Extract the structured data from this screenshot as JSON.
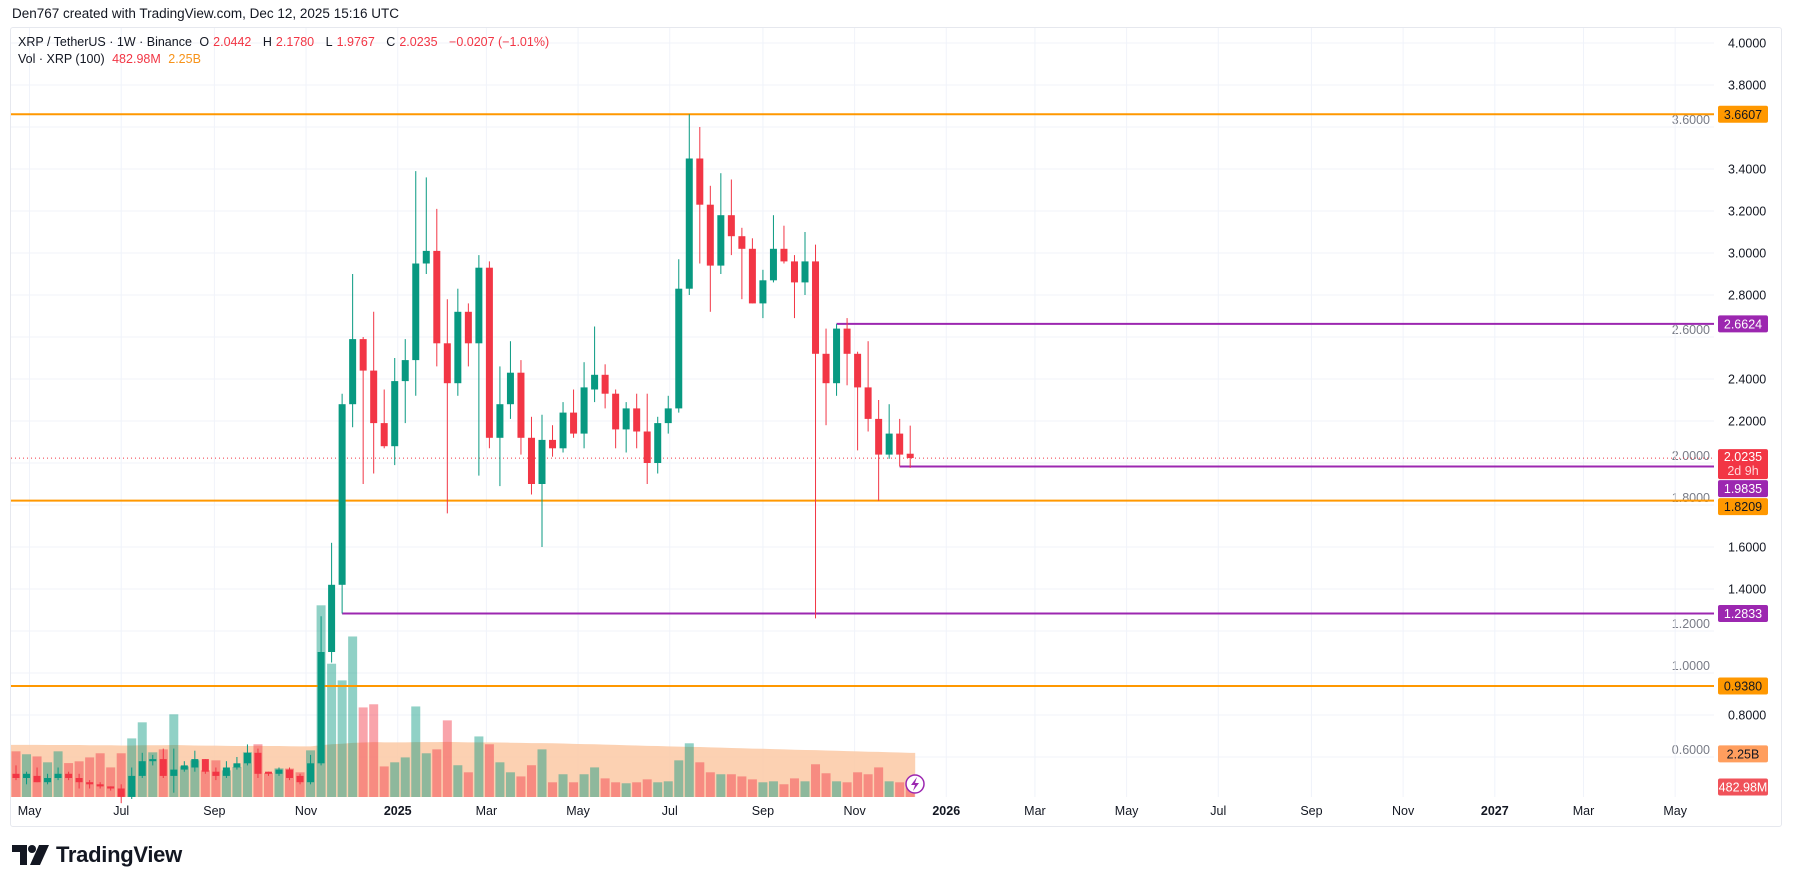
{
  "credit": "Den767 created with TradingView.com, Dec 12, 2025 15:16 UTC",
  "legend": {
    "symbol": "XRP / TetherUS · 1W · Binance",
    "o_label": "O",
    "o": "2.0442",
    "h_label": "H",
    "h": "2.1780",
    "l_label": "L",
    "l": "1.9767",
    "c_label": "C",
    "c": "2.0235",
    "change": "−0.0207 (−1.01%)",
    "vol_label": "Vol · XRP (100)",
    "vol": "482.98M",
    "vol_ma": "2.25B"
  },
  "logo": {
    "text": "TradingView"
  },
  "colors": {
    "up": "#089981",
    "down": "#f23645",
    "orange_level": "#ff9800",
    "purple_level": "#9c27b0",
    "vol_ma": "#ff9e5e",
    "grid": "#f0f3fa"
  },
  "chart_data": {
    "type": "candlestick",
    "interval": "1W",
    "yscale": "linear",
    "ylim": [
      0.5,
      4.0
    ],
    "grid": true,
    "y_ticks": [
      "4.0000",
      "3.8000",
      "3.6000",
      "3.4000",
      "3.2000",
      "3.0000",
      "2.8000",
      "2.6000",
      "2.4000",
      "2.2000",
      "2.0000",
      "1.8000",
      "1.6000",
      "1.4000",
      "1.2000",
      "1.0000",
      "0.8000",
      "0.6000"
    ],
    "x_ticks": [
      {
        "label": "May",
        "date": "2024-05-01"
      },
      {
        "label": "Jul",
        "date": "2024-07-01"
      },
      {
        "label": "Sep",
        "date": "2024-09-01"
      },
      {
        "label": "Nov",
        "date": "2024-11-01"
      },
      {
        "label": "2025",
        "date": "2025-01-01",
        "bold": true
      },
      {
        "label": "Mar",
        "date": "2025-03-01"
      },
      {
        "label": "May",
        "date": "2025-05-01"
      },
      {
        "label": "Jul",
        "date": "2025-07-01"
      },
      {
        "label": "Sep",
        "date": "2025-09-01"
      },
      {
        "label": "Nov",
        "date": "2025-11-01"
      },
      {
        "label": "2026",
        "date": "2026-01-01",
        "bold": true
      },
      {
        "label": "Mar",
        "date": "2026-03-01"
      },
      {
        "label": "May",
        "date": "2026-05-01"
      },
      {
        "label": "Jul",
        "date": "2026-07-01"
      },
      {
        "label": "Sep",
        "date": "2026-09-01"
      },
      {
        "label": "Nov",
        "date": "2026-11-01"
      },
      {
        "label": "2027",
        "date": "2027-01-01",
        "bold": true
      },
      {
        "label": "Mar",
        "date": "2027-03-01"
      },
      {
        "label": "May",
        "date": "2027-05-01"
      }
    ],
    "candle_fields": [
      "week",
      "open",
      "high",
      "low",
      "close",
      "volume_B"
    ],
    "candles": [
      [
        "2024-04-22",
        0.52,
        0.56,
        0.49,
        0.5,
        2.33
      ],
      [
        "2024-04-29",
        0.5,
        0.53,
        0.47,
        0.52,
        2.18
      ],
      [
        "2024-05-06",
        0.51,
        0.55,
        0.48,
        0.48,
        2.07
      ],
      [
        "2024-05-13",
        0.48,
        0.52,
        0.47,
        0.5,
        1.77
      ],
      [
        "2024-05-20",
        0.5,
        0.55,
        0.49,
        0.52,
        2.33
      ],
      [
        "2024-05-27",
        0.52,
        0.53,
        0.49,
        0.5,
        1.73
      ],
      [
        "2024-06-03",
        0.5,
        0.52,
        0.45,
        0.48,
        1.82
      ],
      [
        "2024-06-10",
        0.48,
        0.49,
        0.45,
        0.47,
        2.02
      ],
      [
        "2024-06-17",
        0.47,
        0.48,
        0.45,
        0.46,
        2.23
      ],
      [
        "2024-06-24",
        0.46,
        0.46,
        0.44,
        0.45,
        1.51
      ],
      [
        "2024-07-01",
        0.45,
        0.47,
        0.38,
        0.41,
        2.23
      ],
      [
        "2024-07-08",
        0.41,
        0.55,
        0.4,
        0.51,
        2.99
      ],
      [
        "2024-07-15",
        0.51,
        0.62,
        0.5,
        0.58,
        3.81
      ],
      [
        "2024-07-22",
        0.58,
        0.61,
        0.56,
        0.59,
        2.28
      ],
      [
        "2024-07-29",
        0.59,
        0.64,
        0.5,
        0.51,
        2.43
      ],
      [
        "2024-08-05",
        0.51,
        0.64,
        0.43,
        0.54,
        4.22
      ],
      [
        "2024-08-12",
        0.54,
        0.58,
        0.53,
        0.56,
        1.56
      ],
      [
        "2024-08-19",
        0.55,
        0.63,
        0.53,
        0.59,
        1.87
      ],
      [
        "2024-08-26",
        0.59,
        0.59,
        0.52,
        0.53,
        1.36
      ],
      [
        "2024-09-02",
        0.53,
        0.55,
        0.49,
        0.51,
        1.87
      ],
      [
        "2024-09-09",
        0.51,
        0.58,
        0.5,
        0.55,
        1.36
      ],
      [
        "2024-09-16",
        0.55,
        0.6,
        0.54,
        0.57,
        1.53
      ],
      [
        "2024-09-23",
        0.57,
        0.66,
        0.56,
        0.62,
        2.28
      ],
      [
        "2024-09-30",
        0.62,
        0.64,
        0.5,
        0.52,
        2.69
      ],
      [
        "2024-10-07",
        0.53,
        0.53,
        0.51,
        0.52,
        1.22
      ],
      [
        "2024-10-14",
        0.52,
        0.55,
        0.51,
        0.54,
        1.46
      ],
      [
        "2024-10-21",
        0.54,
        0.55,
        0.49,
        0.5,
        1.45
      ],
      [
        "2024-10-28",
        0.51,
        0.52,
        0.47,
        0.48,
        1.26
      ],
      [
        "2024-11-04",
        0.48,
        0.61,
        0.47,
        0.57,
        2.38
      ],
      [
        "2024-11-11",
        0.57,
        1.27,
        0.56,
        1.1,
        9.78
      ],
      [
        "2024-11-18",
        1.1,
        1.62,
        1.05,
        1.42,
        6.8
      ],
      [
        "2024-11-25",
        1.42,
        2.33,
        1.2833,
        2.28,
        5.95
      ],
      [
        "2024-12-02",
        2.28,
        2.9,
        2.17,
        2.59,
        8.19
      ],
      [
        "2024-12-09",
        2.59,
        2.6,
        1.9,
        2.44,
        4.57
      ],
      [
        "2024-12-16",
        2.44,
        2.72,
        1.95,
        2.19,
        4.73
      ],
      [
        "2024-12-23",
        2.19,
        2.35,
        2.07,
        2.08,
        1.56
      ],
      [
        "2024-12-30",
        2.08,
        2.5,
        1.99,
        2.39,
        1.77
      ],
      [
        "2025-01-06",
        2.39,
        2.59,
        2.19,
        2.49,
        2.02
      ],
      [
        "2025-01-13",
        2.49,
        3.39,
        2.32,
        2.95,
        4.62
      ],
      [
        "2025-01-20",
        2.95,
        3.36,
        2.9,
        3.01,
        2.23
      ],
      [
        "2025-01-27",
        3.01,
        3.21,
        2.46,
        2.57,
        2.43
      ],
      [
        "2025-02-03",
        2.57,
        2.78,
        1.76,
        2.38,
        3.91
      ],
      [
        "2025-02-10",
        2.38,
        2.83,
        2.32,
        2.72,
        1.62
      ],
      [
        "2025-02-17",
        2.72,
        2.76,
        2.46,
        2.57,
        1.26
      ],
      [
        "2025-02-24",
        2.57,
        2.99,
        1.94,
        2.93,
        3.09
      ],
      [
        "2025-03-03",
        2.93,
        2.96,
        2.07,
        2.12,
        2.69
      ],
      [
        "2025-03-10",
        2.12,
        2.46,
        1.89,
        2.28,
        1.77
      ],
      [
        "2025-03-17",
        2.28,
        2.58,
        2.21,
        2.43,
        1.26
      ],
      [
        "2025-03-24",
        2.43,
        2.49,
        2.04,
        2.12,
        1.05
      ],
      [
        "2025-03-31",
        2.12,
        2.22,
        1.85,
        1.9,
        1.62
      ],
      [
        "2025-04-07",
        1.9,
        2.23,
        1.6,
        2.11,
        2.43
      ],
      [
        "2025-04-14",
        2.11,
        2.18,
        2.03,
        2.07,
        0.75
      ],
      [
        "2025-04-21",
        2.07,
        2.29,
        2.05,
        2.24,
        1.16
      ],
      [
        "2025-04-28",
        2.24,
        2.35,
        2.12,
        2.14,
        0.75
      ],
      [
        "2025-05-05",
        2.14,
        2.48,
        2.07,
        2.36,
        1.16
      ],
      [
        "2025-05-12",
        2.35,
        2.65,
        2.29,
        2.42,
        1.51
      ],
      [
        "2025-05-19",
        2.42,
        2.47,
        2.26,
        2.33,
        0.95
      ],
      [
        "2025-05-26",
        2.33,
        2.35,
        2.07,
        2.16,
        0.75
      ],
      [
        "2025-06-02",
        2.16,
        2.29,
        2.05,
        2.26,
        0.7
      ],
      [
        "2025-06-09",
        2.26,
        2.33,
        2.07,
        2.15,
        0.75
      ],
      [
        "2025-06-16",
        2.15,
        2.33,
        1.9,
        2.0,
        0.9
      ],
      [
        "2025-06-23",
        2.0,
        2.22,
        1.95,
        2.19,
        0.75
      ],
      [
        "2025-06-30",
        2.19,
        2.32,
        2.14,
        2.26,
        0.8
      ],
      [
        "2025-07-07",
        2.26,
        2.97,
        2.24,
        2.83,
        1.87
      ],
      [
        "2025-07-14",
        2.83,
        3.6607,
        2.8,
        3.45,
        2.74
      ],
      [
        "2025-07-21",
        3.45,
        3.6,
        2.95,
        3.23,
        1.77
      ],
      [
        "2025-07-28",
        3.23,
        3.32,
        2.72,
        2.94,
        1.26
      ],
      [
        "2025-08-04",
        2.94,
        3.38,
        2.9,
        3.18,
        1.16
      ],
      [
        "2025-08-11",
        3.18,
        3.35,
        2.99,
        3.08,
        1.16
      ],
      [
        "2025-08-18",
        3.08,
        3.12,
        2.78,
        3.02,
        1.05
      ],
      [
        "2025-08-25",
        3.02,
        3.07,
        2.76,
        2.76,
        0.9
      ],
      [
        "2025-09-01",
        2.76,
        2.92,
        2.69,
        2.87,
        0.75
      ],
      [
        "2025-09-08",
        2.87,
        3.18,
        2.86,
        3.02,
        0.8
      ],
      [
        "2025-09-15",
        3.02,
        3.13,
        2.95,
        2.96,
        0.65
      ],
      [
        "2025-09-22",
        2.96,
        2.99,
        2.69,
        2.86,
        0.95
      ],
      [
        "2025-09-29",
        2.86,
        3.1,
        2.8,
        2.96,
        0.8
      ],
      [
        "2025-10-06",
        2.96,
        3.04,
        1.26,
        2.52,
        1.67
      ],
      [
        "2025-10-13",
        2.52,
        2.64,
        2.18,
        2.38,
        1.21
      ],
      [
        "2025-10-20",
        2.38,
        2.6624,
        2.32,
        2.64,
        0.8
      ],
      [
        "2025-10-27",
        2.64,
        2.69,
        2.37,
        2.52,
        0.75
      ],
      [
        "2025-11-03",
        2.52,
        2.53,
        2.06,
        2.36,
        1.26
      ],
      [
        "2025-11-10",
        2.36,
        2.58,
        2.15,
        2.21,
        1.16
      ],
      [
        "2025-11-17",
        2.21,
        2.3,
        1.82,
        2.04,
        1.51
      ],
      [
        "2025-11-24",
        2.04,
        2.28,
        2.02,
        2.14,
        0.8
      ],
      [
        "2025-12-01",
        2.14,
        2.21,
        1.9835,
        2.04,
        0.75
      ],
      [
        "2025-12-08",
        2.0442,
        2.178,
        1.9767,
        2.0235,
        0.483
      ]
    ],
    "volume_ma_B": [
      2.66,
      2.66,
      2.66,
      2.65,
      2.65,
      2.65,
      2.65,
      2.64,
      2.64,
      2.64,
      2.63,
      2.63,
      2.64,
      2.64,
      2.64,
      2.65,
      2.64,
      2.63,
      2.62,
      2.62,
      2.61,
      2.6,
      2.6,
      2.61,
      2.6,
      2.6,
      2.59,
      2.58,
      2.58,
      2.64,
      2.69,
      2.72,
      2.76,
      2.78,
      2.8,
      2.79,
      2.79,
      2.79,
      2.8,
      2.8,
      2.8,
      2.81,
      2.8,
      2.79,
      2.79,
      2.79,
      2.78,
      2.77,
      2.76,
      2.75,
      2.75,
      2.74,
      2.73,
      2.71,
      2.7,
      2.69,
      2.67,
      2.66,
      2.64,
      2.63,
      2.61,
      2.6,
      2.58,
      2.57,
      2.56,
      2.55,
      2.53,
      2.52,
      2.5,
      2.49,
      2.47,
      2.46,
      2.44,
      2.43,
      2.41,
      2.4,
      2.39,
      2.37,
      2.36,
      2.34,
      2.33,
      2.31,
      2.3,
      2.28,
      2.27,
      2.25
    ],
    "levels": [
      {
        "value": 3.6607,
        "label": "3.6607",
        "color": "orange",
        "from": null
      },
      {
        "value": 2.6624,
        "label": "2.6624",
        "color": "purple",
        "from": "2025-10-20"
      },
      {
        "value": 1.9835,
        "label": "1.9835",
        "color": "purple",
        "from": "2025-12-01"
      },
      {
        "value": 1.8209,
        "label": "1.8209",
        "color": "orange",
        "from": null
      },
      {
        "value": 1.2833,
        "label": "1.2833",
        "color": "purple",
        "from": "2024-11-25"
      },
      {
        "value": 0.938,
        "label": "0.9380",
        "color": "orange",
        "from": null
      }
    ],
    "last_price": {
      "value": 2.0235,
      "label": "2.0235",
      "countdown": "2d 9h"
    },
    "volume_labels": {
      "ma": "2.25B",
      "last": "482.98M"
    }
  }
}
